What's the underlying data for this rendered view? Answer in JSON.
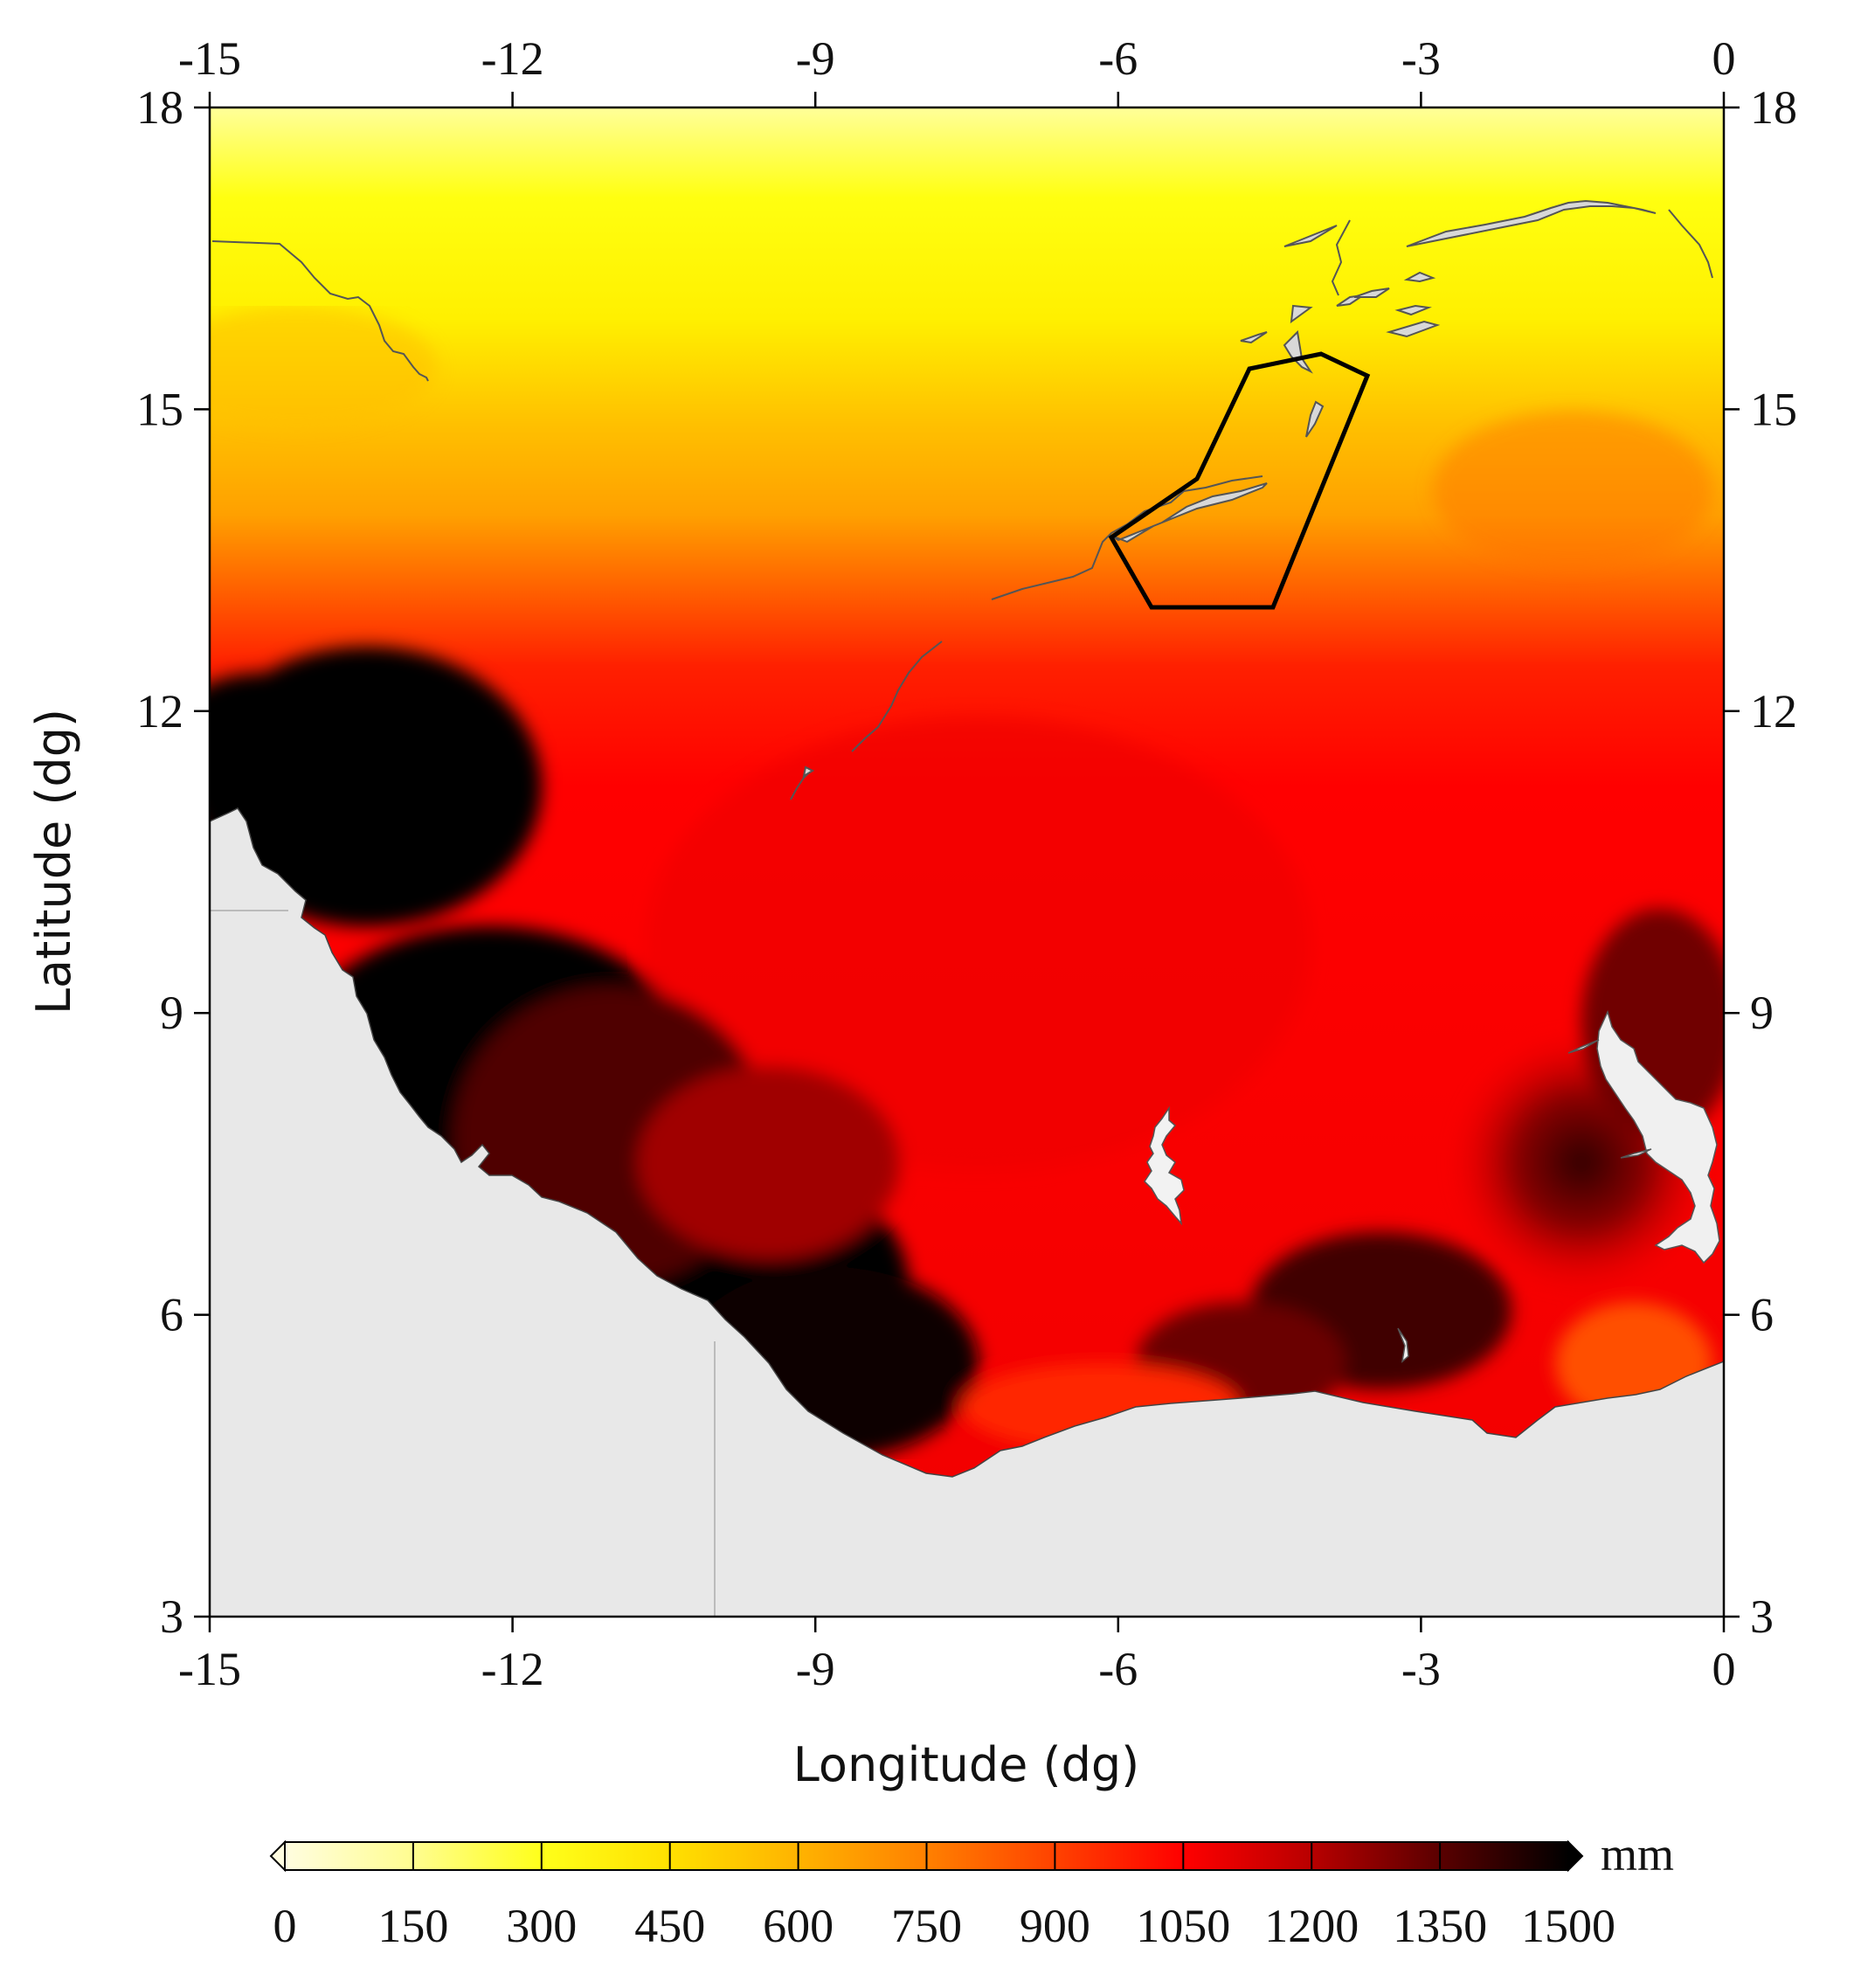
{
  "chart_data": {
    "type": "heatmap",
    "title": "",
    "xlabel": "Longitude (dg)",
    "ylabel": "Latitude (dg)",
    "xlim": [
      -15,
      0
    ],
    "ylim": [
      3,
      18
    ],
    "x_ticks": [
      "-15",
      "-12",
      "-9",
      "-6",
      "-3",
      "0"
    ],
    "y_ticks": [
      "18",
      "15",
      "12",
      "9",
      "6",
      "3"
    ],
    "x_tick_values": [
      -15,
      -12,
      -9,
      -6,
      -3,
      0
    ],
    "y_tick_values": [
      18,
      15,
      12,
      9,
      6,
      3
    ],
    "colorbar": {
      "unit": "mm",
      "ticks": [
        "0",
        "150",
        "300",
        "450",
        "600",
        "750",
        "900",
        "1050",
        "1200",
        "1350",
        "1500"
      ],
      "values": [
        0,
        150,
        300,
        450,
        600,
        750,
        900,
        1050,
        1200,
        1350,
        1500
      ],
      "colors": [
        "#fffde0",
        "#fffd90",
        "#ffff1a",
        "#ffe000",
        "#ffb300",
        "#ff8000",
        "#ff4200",
        "#ff0000",
        "#b80000",
        "#5a0000",
        "#000000"
      ],
      "extend": "both"
    },
    "field_description_samples": [
      {
        "lon": -10,
        "lat": 17.5,
        "value": 150
      },
      {
        "lon": -10,
        "lat": 15,
        "value": 500
      },
      {
        "lon": -10,
        "lat": 13,
        "value": 800
      },
      {
        "lon": -8,
        "lat": 11,
        "value": 1000
      },
      {
        "lon": -5,
        "lat": 10,
        "value": 1050
      },
      {
        "lon": -12.5,
        "lat": 10,
        "value": 1500
      },
      {
        "lon": -8.5,
        "lat": 5.5,
        "value": 1500
      },
      {
        "lon": -1.5,
        "lat": 7.5,
        "value": 1300
      },
      {
        "lon": -3,
        "lat": 6,
        "value": 1300
      }
    ],
    "land_mask_color": "#e8e8e8"
  }
}
